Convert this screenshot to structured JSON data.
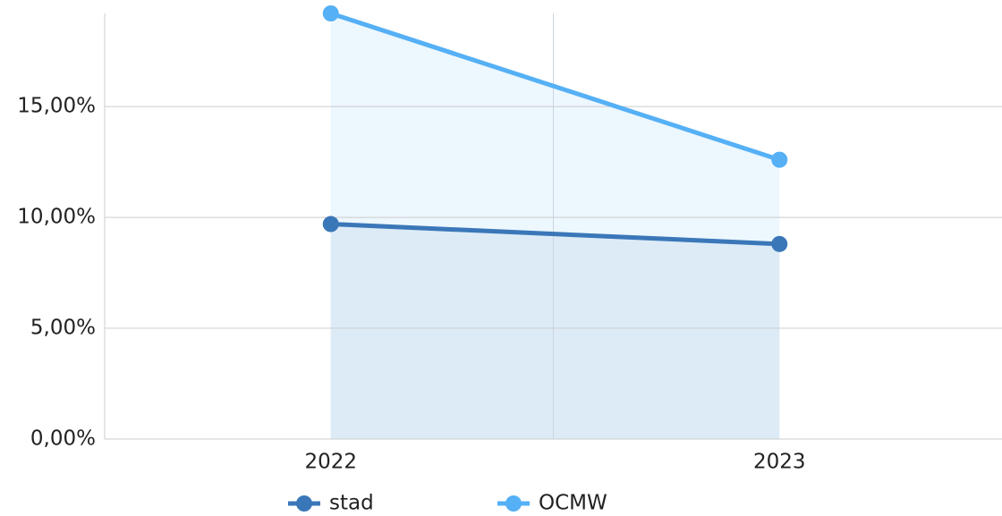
{
  "chart_data": {
    "type": "line",
    "area": true,
    "categories": [
      "2022",
      "2023"
    ],
    "series": [
      {
        "name": "stad",
        "color": "#3a77b8",
        "area_color": "#d9e9f6",
        "values": [
          9.7,
          8.8
        ]
      },
      {
        "name": "OCMW",
        "color": "#55b0f5",
        "area_color": "#eaf6fe",
        "values": [
          19.2,
          12.6
        ]
      }
    ],
    "ylim": [
      0,
      19.2
    ],
    "yticks": [
      {
        "value": 0,
        "label": "0,00%"
      },
      {
        "value": 5,
        "label": "5,00%"
      },
      {
        "value": 10,
        "label": "10,00%"
      },
      {
        "value": 15,
        "label": "15,00%"
      }
    ],
    "grid": true,
    "legend": "bottom"
  }
}
